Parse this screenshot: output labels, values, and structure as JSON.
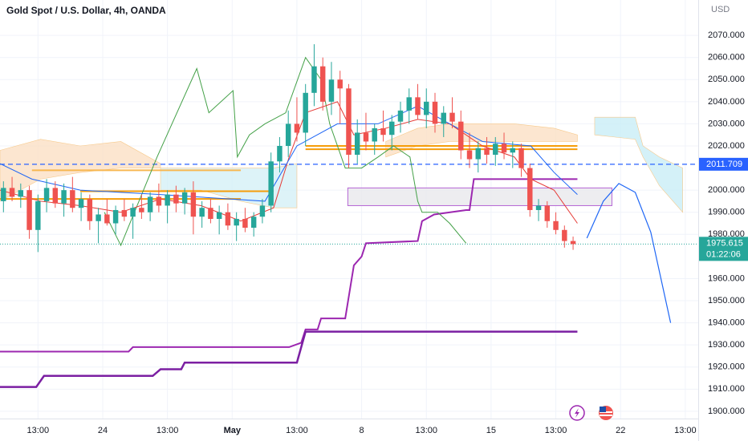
{
  "chart_data": {
    "type": "candlestick",
    "title": "Gold Spot / U.S. Dollar, 4h, OANDA",
    "currency": "USD",
    "up_color": "#26a69a",
    "down_color": "#ef5350",
    "xlim": [
      -0.4,
      80.5
    ],
    "ylim": [
      1896.7,
      2086
    ],
    "xticks": [
      {
        "value": 4,
        "label": "13:00"
      },
      {
        "value": 11.5,
        "label": "24"
      },
      {
        "value": 19,
        "label": "13:00"
      },
      {
        "value": 26.5,
        "label": "May"
      },
      {
        "value": 34,
        "label": "13:00"
      },
      {
        "value": 41.5,
        "label": "8"
      },
      {
        "value": 49,
        "label": "13:00"
      },
      {
        "value": 56.5,
        "label": "15"
      },
      {
        "value": 64,
        "label": "13:00"
      },
      {
        "value": 71.5,
        "label": "22"
      },
      {
        "value": 79,
        "label": "13:00"
      }
    ],
    "yticks": [
      {
        "value": 1900,
        "label": "1900.000"
      },
      {
        "value": 1910,
        "label": "1910.000"
      },
      {
        "value": 1920,
        "label": "1920.000"
      },
      {
        "value": 1930,
        "label": "1930.000"
      },
      {
        "value": 1940,
        "label": "1940.000"
      },
      {
        "value": 1950,
        "label": "1950.000"
      },
      {
        "value": 1960,
        "label": "1960.000"
      },
      {
        "value": 1980,
        "label": "1980.000"
      },
      {
        "value": 1990,
        "label": "1990.000"
      },
      {
        "value": 2000,
        "label": "2000.000"
      },
      {
        "value": 2020,
        "label": "2020.000"
      },
      {
        "value": 2030,
        "label": "2030.000"
      },
      {
        "value": 2040,
        "label": "2040.000"
      },
      {
        "value": 2050,
        "label": "2050.000"
      },
      {
        "value": 2060,
        "label": "2060.000"
      },
      {
        "value": 2070,
        "label": "2070.000"
      }
    ],
    "open": [
      1995,
      2001,
      1997,
      2000,
      1982,
      1995,
      2001,
      1994,
      2000,
      1992,
      1996,
      1986,
      1989,
      1985,
      1991,
      1988,
      1992,
      1990,
      1997,
      1993,
      1998,
      1994,
      1999,
      1988,
      1992,
      1987,
      1990,
      1984,
      1987,
      1983,
      1988,
      1993,
      2013,
      2020,
      2030,
      2026,
      2044,
      2056,
      2040,
      2050,
      2046,
      2016,
      2026,
      2022,
      2028,
      2025,
      2031,
      2036,
      2042,
      2034,
      2040,
      2030,
      2035,
      2031,
      2018,
      2014,
      2019,
      2016,
      2021,
      2017,
      2019,
      2010,
      1991,
      1993,
      1986,
      1982,
      1977
    ],
    "high": [
      2004,
      2006,
      2003,
      2002,
      1998,
      2005,
      2004,
      2003,
      2006,
      1999,
      1998,
      1992,
      1996,
      1993,
      1996,
      1994,
      1998,
      1999,
      2003,
      2000,
      2002,
      2001,
      2004,
      1995,
      1996,
      1993,
      1994,
      1990,
      1992,
      1990,
      1996,
      2017,
      2024,
      2036,
      2042,
      2048,
      2066,
      2060,
      2058,
      2054,
      2048,
      2032,
      2035,
      2030,
      2036,
      2034,
      2040,
      2046,
      2048,
      2046,
      2044,
      2038,
      2042,
      2036,
      2026,
      2022,
      2024,
      2024,
      2026,
      2022,
      2021,
      2012,
      1996,
      1995,
      1990,
      1984,
      1979
    ],
    "low": [
      1990,
      1995,
      1992,
      1978,
      1972,
      1990,
      1992,
      1988,
      1990,
      1986,
      1982,
      1976,
      1984,
      1980,
      1986,
      1978,
      1987,
      1986,
      1990,
      1985,
      1990,
      1989,
      1980,
      1983,
      1985,
      1980,
      1982,
      1977,
      1981,
      1979,
      1985,
      1990,
      2008,
      2015,
      2022,
      2020,
      2038,
      2036,
      2034,
      2030,
      2010,
      2012,
      2018,
      2016,
      2022,
      2018,
      2026,
      2030,
      2032,
      2028,
      2026,
      2024,
      2028,
      2014,
      2010,
      2008,
      2012,
      2011,
      2014,
      2010,
      2006,
      1988,
      1986,
      1983,
      1980,
      1974,
      1973
    ],
    "close": [
      2001,
      1997,
      2000,
      1982,
      1995,
      2001,
      1994,
      2000,
      1992,
      1996,
      1986,
      1989,
      1985,
      1991,
      1988,
      1992,
      1990,
      1997,
      1993,
      1998,
      1994,
      1999,
      1988,
      1992,
      1987,
      1990,
      1984,
      1987,
      1983,
      1988,
      1993,
      2013,
      2020,
      2030,
      2026,
      2044,
      2056,
      2040,
      2050,
      2046,
      2016,
      2026,
      2022,
      2028,
      2025,
      2031,
      2036,
      2042,
      2034,
      2040,
      2030,
      2035,
      2031,
      2018,
      2014,
      2019,
      2016,
      2021,
      2017,
      2019,
      2010,
      1991,
      1993,
      1986,
      1982,
      1977,
      1975.615
    ],
    "clouds": [
      {
        "color": "#fbe0c4",
        "x": [
          -0.4,
          4.3,
          8.9,
          13.6,
          18.2
        ],
        "upper": [
          2018,
          2023,
          2020,
          2022,
          2012
        ],
        "lower": [
          1995,
          2005,
          2008,
          2010,
          2010
        ]
      },
      {
        "color": "#d4f0f6",
        "x": [
          18.2,
          22.9,
          27.5,
          31.3,
          34
        ],
        "upper": [
          2010,
          2010,
          2010,
          2010,
          2012
        ],
        "lower": [
          2000,
          2000,
          1995,
          1992,
          1992
        ]
      },
      {
        "color": "#fbe0c4",
        "x": [
          44.3,
          48,
          51.7,
          55.5,
          59.2,
          63.8,
          66.5
        ],
        "upper": [
          2022,
          2028,
          2030,
          2030,
          2030,
          2028,
          2025
        ],
        "lower": [
          2015,
          2020,
          2022,
          2022,
          2022,
          2022,
          2022
        ]
      },
      {
        "color": "#c9eef6",
        "x": [
          68.5,
          73.2,
          74.1,
          76,
          78.7
        ],
        "upper": [
          2033,
          2033,
          2020,
          2015,
          2010
        ],
        "lower": [
          2025,
          2023,
          2015,
          2002,
          1990
        ]
      }
    ],
    "levels": [
      {
        "value": 2020,
        "x": [
          35,
          66.5
        ],
        "color": "#f59d0a"
      },
      {
        "value": 2018.5,
        "x": [
          35,
          66.5
        ],
        "color": "#f59d0a"
      },
      {
        "value": 2009,
        "x": [
          3.3,
          27.5
        ],
        "color": "#f7b750"
      },
      {
        "value": 1999.5,
        "x": [
          8.9,
          31.3
        ],
        "color": "#f59d0a"
      },
      {
        "value": 1996,
        "x": [
          -0.4,
          27.5
        ],
        "color": "#f59d0a"
      }
    ],
    "zone": {
      "x": [
        39.9,
        70.5
      ],
      "y": [
        1993,
        2001
      ],
      "color": "#b565d4"
    },
    "lines": [
      {
        "color": "#9c27b0",
        "width": 2,
        "x": [
          -0.4,
          14.5,
          15,
          33.1,
          34.5,
          35,
          36.4,
          36.8,
          39.6,
          40.6,
          41.5,
          42,
          48,
          48.5,
          49.9,
          53.6,
          54,
          54.5,
          66.5
        ],
        "values": [
          1927,
          1927,
          1929,
          1929,
          1931,
          1937,
          1937,
          1942,
          1942,
          1966,
          1970,
          1976,
          1977,
          1986,
          1989,
          1991,
          1991,
          2005,
          2005
        ]
      },
      {
        "color": "#7b1fa2",
        "width": 2.5,
        "x": [
          -0.4,
          3.8,
          4.7,
          17.3,
          18.2,
          20.6,
          21,
          34,
          35,
          66.5
        ],
        "values": [
          1911,
          1911,
          1916,
          1916,
          1919,
          1919,
          1922,
          1922,
          1936,
          1936
        ]
      },
      {
        "color": "#43a047",
        "width": 1,
        "x": [
          11.7,
          13.6,
          17.8,
          22.4,
          23.8,
          26.6,
          27.1,
          28.5,
          30.3,
          32.7,
          35,
          36.8,
          37.8,
          39.6,
          41.5,
          43.4,
          45.2,
          47.1,
          48,
          48.5,
          50.3,
          51.7,
          53.6
        ],
        "values": [
          1990,
          1975,
          2015,
          2055,
          2035,
          2045,
          2015,
          2025,
          2030,
          2035,
          2060,
          2050,
          2030,
          2010,
          2010,
          2015,
          2020,
          2015,
          1995,
          1990,
          1990,
          1985,
          1976
        ]
      },
      {
        "color": "#e53935",
        "width": 1,
        "x": [
          -0.4,
          4.3,
          8.9,
          13.6,
          18.2,
          22.9,
          27.5,
          31.3,
          33.1,
          35,
          38.7,
          40.6,
          44.3,
          48,
          51.7,
          55.5,
          59.2,
          61.1,
          63.8,
          66.5
        ],
        "values": [
          2000,
          1995,
          1993,
          1990,
          1996,
          1993,
          1986,
          1992,
          2015,
          2035,
          2040,
          2025,
          2028,
          2032,
          2030,
          2020,
          2015,
          2005,
          2000,
          1985
        ]
      },
      {
        "color": "#1e66f5",
        "width": 1,
        "x": [
          -0.4,
          3.3,
          8.9,
          18.2,
          30.3,
          34,
          38.7,
          43.4,
          48,
          51.7,
          55.5,
          61.1,
          63.8,
          66.5
        ],
        "values": [
          2012,
          2005,
          2000,
          1998,
          1995,
          2020,
          2030,
          2030,
          2038,
          2030,
          2022,
          2020,
          2008,
          1998
        ]
      },
      {
        "color": "#1e66f5",
        "width": 1.2,
        "x": [
          67.6,
          69.5,
          71.3,
          73.2,
          75,
          77.3
        ],
        "values": [
          1978.3,
          1995,
          2003,
          1999,
          1981,
          1940
        ]
      }
    ],
    "price_line": {
      "value": 2011.709,
      "color": "#2962ff"
    },
    "last_price": {
      "value": 1975.615,
      "countdown": "01:22:06",
      "color": "#26a69a"
    }
  }
}
